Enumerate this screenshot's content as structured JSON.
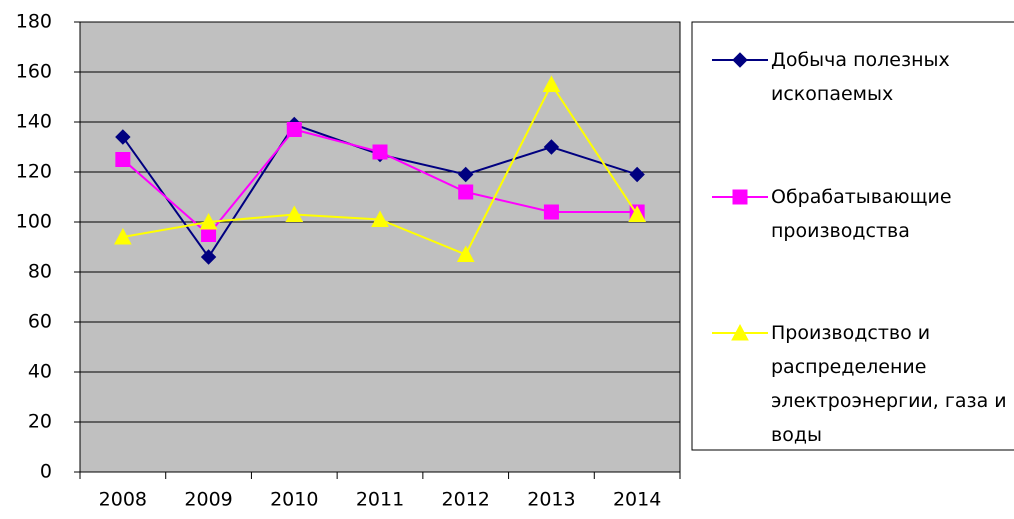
{
  "chart_data": {
    "type": "line",
    "categories": [
      "2008",
      "2009",
      "2010",
      "2011",
      "2012",
      "2013",
      "2014"
    ],
    "series": [
      {
        "name": "Добыча полезных ископаемых",
        "color": "#000080",
        "marker": "diamond",
        "values": [
          134,
          86,
          139,
          127,
          119,
          130,
          119
        ]
      },
      {
        "name": "Обрабатывающие производства",
        "color": "#ff00ff",
        "marker": "square",
        "values": [
          125,
          95,
          137,
          128,
          112,
          104,
          104
        ]
      },
      {
        "name": "Производство и распределение электроэнергии, газа и воды",
        "color": "#ffff00",
        "marker": "triangle",
        "values": [
          94,
          100,
          103,
          101,
          87,
          155,
          103
        ]
      }
    ],
    "ylim": [
      0,
      180
    ],
    "yticks": [
      0,
      20,
      40,
      60,
      80,
      100,
      120,
      140,
      160,
      180
    ],
    "grid": true,
    "plot_background": "#c0c0c0",
    "legend": "right"
  }
}
